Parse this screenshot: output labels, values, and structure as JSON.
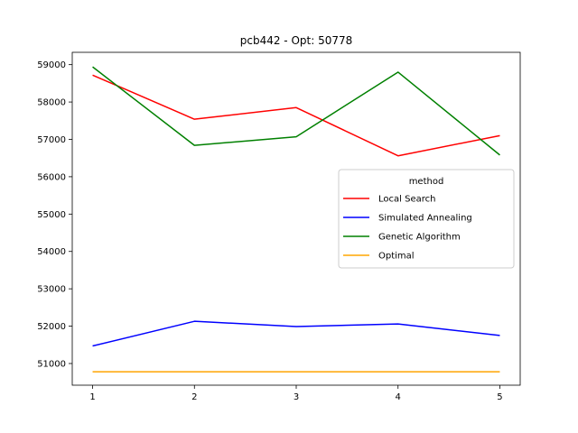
{
  "chart_data": {
    "type": "line",
    "title": "pcb442 - Opt: 50778",
    "xlabel": "",
    "ylabel": "",
    "x": [
      1,
      2,
      3,
      4,
      5
    ],
    "xlim": [
      0.8,
      5.2
    ],
    "ylim": [
      50420,
      59330
    ],
    "xticks": [
      1,
      2,
      3,
      4,
      5
    ],
    "yticks": [
      51000,
      52000,
      53000,
      54000,
      55000,
      56000,
      57000,
      58000,
      59000
    ],
    "grid": false,
    "legend": {
      "title": "method",
      "placement": "center-right"
    },
    "series": [
      {
        "name": "Local Search",
        "color": "#ff0000",
        "values": [
          58720,
          57540,
          57850,
          56560,
          57100
        ]
      },
      {
        "name": "Simulated Annealing",
        "color": "#0000ff",
        "values": [
          51470,
          52130,
          51990,
          52060,
          51750
        ]
      },
      {
        "name": "Genetic Algorithm",
        "color": "#008000",
        "values": [
          58940,
          56840,
          57070,
          58800,
          56580
        ]
      },
      {
        "name": "Optimal",
        "color": "#ffa500",
        "values": [
          50778,
          50778,
          50778,
          50778,
          50778
        ]
      }
    ]
  }
}
